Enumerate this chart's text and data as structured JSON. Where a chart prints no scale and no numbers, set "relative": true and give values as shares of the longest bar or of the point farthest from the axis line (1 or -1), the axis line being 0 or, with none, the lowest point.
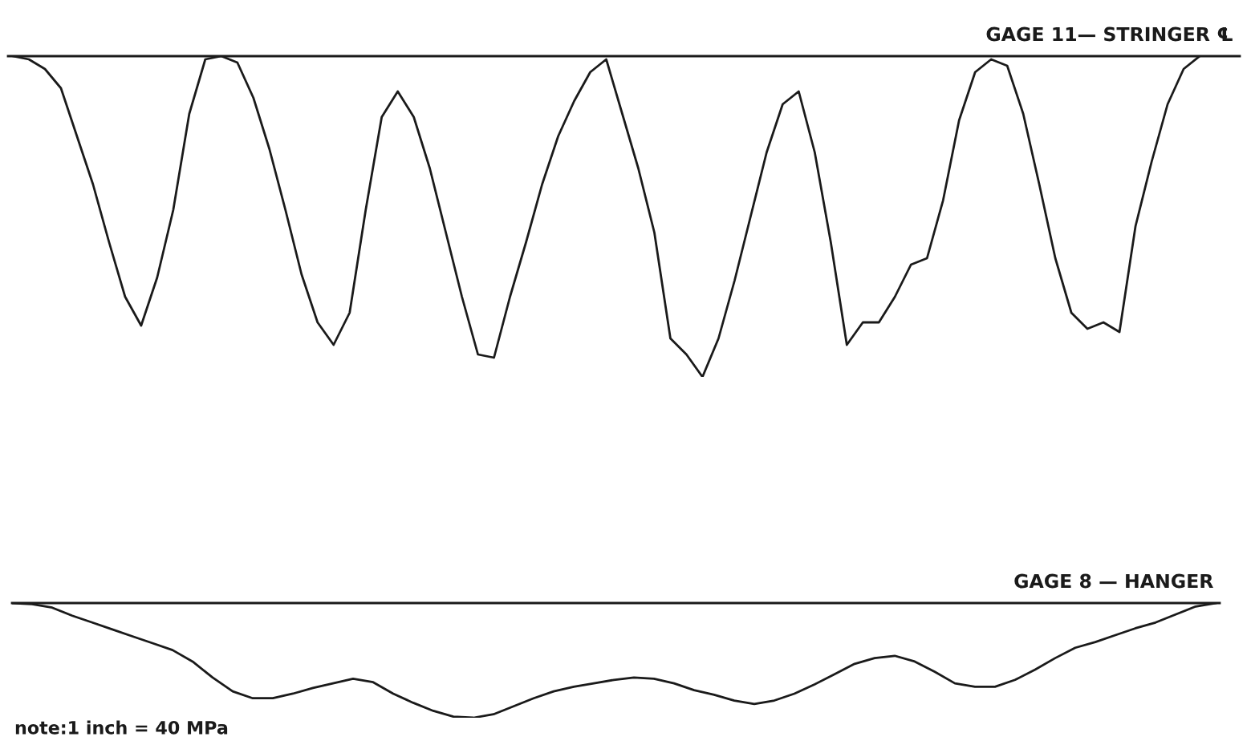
{
  "chart_data": [
    {
      "type": "line",
      "title": "GAGE 11— STRINGER ℄",
      "relative": true,
      "grid": false,
      "legend": false,
      "categories": [
        null,
        null,
        null,
        null,
        null,
        null,
        null,
        null,
        null,
        null,
        null,
        null,
        null,
        null,
        null,
        null,
        null,
        null,
        null,
        null,
        null,
        null,
        null,
        null,
        null,
        null,
        null,
        null,
        null,
        null,
        null,
        null,
        null,
        null,
        null,
        null,
        null,
        null,
        null,
        null,
        null,
        null,
        null,
        null,
        null,
        null,
        null,
        null,
        null,
        null,
        null,
        null,
        null,
        null,
        null,
        null,
        null,
        null,
        null,
        null,
        null,
        null,
        null,
        null,
        null,
        null,
        null,
        null,
        null,
        null,
        null,
        null,
        null,
        null,
        null
      ],
      "series": [
        {
          "color": "#1a1a1a",
          "values": [
            0,
            -0.01,
            -0.04,
            -0.1,
            -0.25,
            -0.4,
            -0.58,
            -0.75,
            -0.84,
            -0.69,
            -0.48,
            -0.18,
            -0.01,
            0,
            -0.02,
            -0.13,
            -0.29,
            -0.48,
            -0.68,
            -0.83,
            -0.9,
            -0.8,
            -0.48,
            -0.19,
            -0.11,
            -0.19,
            -0.35,
            -0.55,
            -0.75,
            -0.93,
            -0.94,
            -0.75,
            -0.58,
            -0.4,
            -0.25,
            -0.14,
            -0.05,
            -0.01,
            -0.18,
            -0.35,
            -0.55,
            -0.88,
            -0.93,
            -1,
            -0.88,
            -0.7,
            -0.5,
            -0.3,
            -0.15,
            -0.11,
            -0.3,
            -0.58,
            -0.9,
            -0.83,
            -0.83,
            -0.75,
            -0.65,
            -0.63,
            -0.45,
            -0.2,
            -0.05,
            -0.01,
            -0.03,
            -0.18,
            -0.4,
            -0.63,
            -0.8,
            -0.85,
            -0.83,
            -0.86,
            -0.53,
            -0.33,
            -0.15,
            -0.04,
            0
          ]
        }
      ]
    },
    {
      "type": "line",
      "title": "GAGE 8 — HANGER",
      "relative": true,
      "grid": false,
      "legend": false,
      "annotations": [
        "note:1 inch = 40 MPa"
      ],
      "categories": [
        null,
        null,
        null,
        null,
        null,
        null,
        null,
        null,
        null,
        null,
        null,
        null,
        null,
        null,
        null,
        null,
        null,
        null,
        null,
        null,
        null,
        null,
        null,
        null,
        null,
        null,
        null,
        null,
        null,
        null,
        null,
        null,
        null,
        null,
        null,
        null,
        null,
        null,
        null,
        null,
        null,
        null,
        null,
        null,
        null,
        null,
        null,
        null,
        null,
        null,
        null,
        null,
        null,
        null,
        null,
        null,
        null,
        null,
        null,
        null,
        null
      ],
      "series": [
        {
          "color": "#1a1a1a",
          "values": [
            0,
            -0.01,
            -0.04,
            -0.11,
            -0.17,
            -0.23,
            -0.29,
            -0.35,
            -0.41,
            -0.51,
            -0.65,
            -0.77,
            -0.83,
            -0.83,
            -0.79,
            -0.74,
            -0.7,
            -0.66,
            -0.69,
            -0.79,
            -0.87,
            -0.94,
            -0.99,
            -1,
            -0.97,
            -0.9,
            -0.83,
            -0.77,
            -0.73,
            -0.7,
            -0.67,
            -0.65,
            -0.66,
            -0.7,
            -0.76,
            -0.8,
            -0.85,
            -0.88,
            -0.85,
            -0.79,
            -0.71,
            -0.62,
            -0.53,
            -0.48,
            -0.46,
            -0.51,
            -0.6,
            -0.7,
            -0.73,
            -0.73,
            -0.67,
            -0.58,
            -0.48,
            -0.39,
            -0.34,
            -0.28,
            -0.22,
            -0.17,
            -0.1,
            -0.03,
            0
          ]
        }
      ]
    }
  ]
}
